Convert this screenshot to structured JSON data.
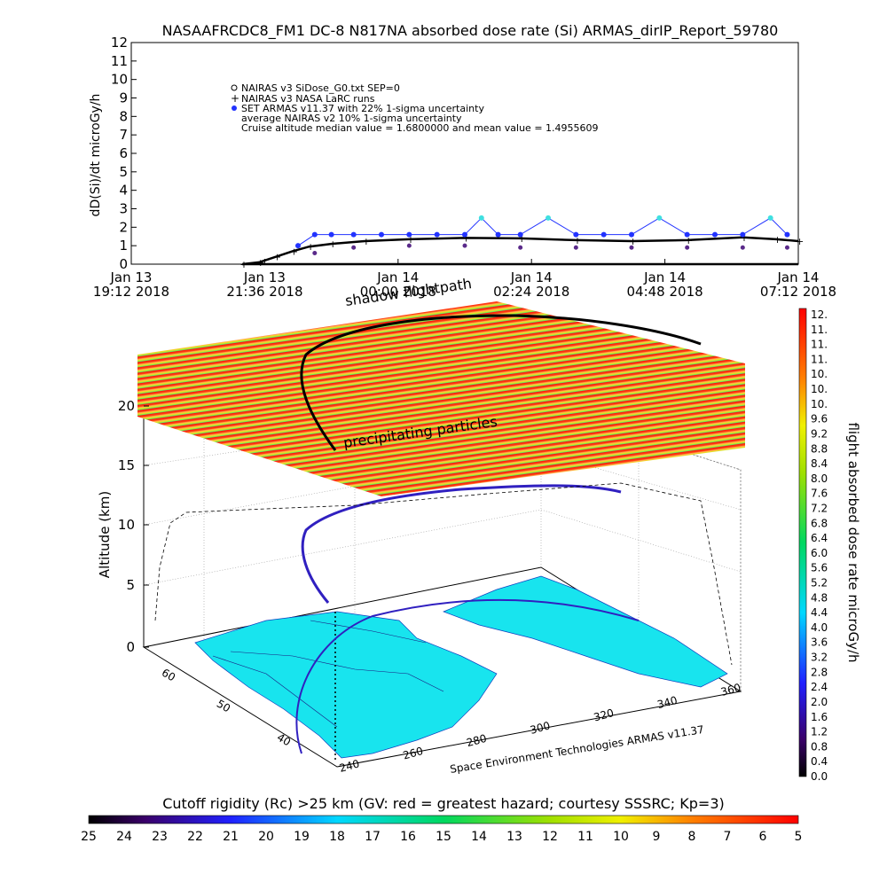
{
  "title": "NASAAFRCDC8_FM1 DC-8   N817NA absorbed dose rate (Si) ARMAS_dirIP_Report_59780",
  "colors": {
    "armas": "#2233ff",
    "armas_high": "#40e0e0",
    "nairas_v3": "#000000",
    "nairas_v2": "#5a2a8a",
    "land": "#18e4ee"
  },
  "chart_data": [
    {
      "type": "line",
      "ylabel": "dD(Si)/dt microGy/h",
      "ylim": [
        0,
        12
      ],
      "y_ticks": [
        "0",
        "1",
        "2",
        "3",
        "4",
        "5",
        "6",
        "7",
        "8",
        "9",
        "10",
        "11",
        "12"
      ],
      "x_ticks": [
        {
          "line1": "Jan 13",
          "line2": "19:12 2018"
        },
        {
          "line1": "Jan 13",
          "line2": "21:36 2018"
        },
        {
          "line1": "Jan 14",
          "line2": "00:00 2018"
        },
        {
          "line1": "Jan 14",
          "line2": "02:24 2018"
        },
        {
          "line1": "Jan 14",
          "line2": "04:48 2018"
        },
        {
          "line1": "Jan 14",
          "line2": "07:12 2018"
        }
      ],
      "x_hours": [
        0,
        2.4,
        4.8,
        7.2,
        9.6,
        12
      ],
      "legend": [
        "NAIRAS v3 SiDose_G0.txt SEP=0",
        "NAIRAS v3 NASA LaRC runs",
        "SET ARMAS v11.37 with 22% 1-sigma uncertainty",
        "average NAIRAS v2 10% 1-sigma uncertainty",
        "Cruise altitude median value = 1.6800000 and mean value = 1.4955609"
      ],
      "series": [
        {
          "name": "NAIRAS v3 SiDose_G0.txt SEP=0",
          "x": [
            2.0,
            12.0
          ],
          "y": [
            0,
            0
          ]
        },
        {
          "name": "NAIRAS v3 NASA LaRC runs",
          "x": [
            2.0,
            2.3,
            2.6,
            2.9,
            3.2,
            3.6,
            4.2,
            5.0,
            6.0,
            7.0,
            8.0,
            9.0,
            10.0,
            11.0,
            11.6,
            12.0
          ],
          "y": [
            0.0,
            0.1,
            0.4,
            0.7,
            0.95,
            1.1,
            1.25,
            1.35,
            1.42,
            1.4,
            1.3,
            1.25,
            1.3,
            1.45,
            1.35,
            1.25
          ]
        },
        {
          "name": "SET ARMAS v11.37 with 22% 1-sigma uncertainty",
          "x": [
            3.0,
            3.3,
            3.6,
            4.0,
            4.5,
            5.0,
            5.5,
            6.0,
            6.3,
            6.6,
            7.0,
            7.5,
            8.0,
            8.5,
            9.0,
            9.5,
            10.0,
            10.5,
            11.0,
            11.5,
            11.8
          ],
          "y": [
            1.0,
            1.6,
            1.6,
            1.6,
            1.6,
            1.6,
            1.6,
            1.6,
            2.5,
            1.6,
            1.6,
            2.5,
            1.6,
            1.6,
            1.6,
            2.5,
            1.6,
            1.6,
            1.6,
            2.5,
            1.6
          ]
        }
      ]
    },
    {
      "type": "scatter",
      "title": "shadow flightpath",
      "zlabel": "Altitude (km)",
      "z_ticks": [
        "0",
        "5",
        "10",
        "15",
        "20"
      ],
      "lon_ticks": [
        "240",
        "260",
        "280",
        "300",
        "320",
        "340",
        "360"
      ],
      "lat_ticks": [
        "40",
        "50",
        "60"
      ],
      "annotation": "precipitating particles",
      "footer": "Space Environment Technologies ARMAS v11.37",
      "flight_altitude_km": [
        0,
        2,
        4,
        6,
        8,
        10,
        11,
        11.5,
        11.8,
        12,
        12
      ]
    },
    {
      "type": "heatmap",
      "label": "flight absorbed dose rate microGy/h",
      "ticks": [
        "12.",
        "11.",
        "11.",
        "11.",
        "10.",
        "10.",
        "10.",
        "9.6",
        "9.2",
        "8.8",
        "8.4",
        "8.0",
        "7.6",
        "7.2",
        "6.8",
        "6.4",
        "6.0",
        "5.6",
        "5.2",
        "4.8",
        "4.4",
        "4.0",
        "3.6",
        "3.2",
        "2.8",
        "2.4",
        "2.0",
        "1.6",
        "1.2",
        "0.8",
        "0.4",
        "0.0"
      ]
    },
    {
      "type": "heatmap",
      "title": "Cutoff rigidity (Rc) >25 km (GV: red = greatest hazard; courtesy SSSRC; Kp=3)",
      "ticks": [
        "25",
        "24",
        "23",
        "22",
        "21",
        "20",
        "19",
        "18",
        "17",
        "16",
        "15",
        "14",
        "13",
        "12",
        "11",
        "10",
        "9",
        "8",
        "7",
        "6",
        "5"
      ]
    }
  ]
}
